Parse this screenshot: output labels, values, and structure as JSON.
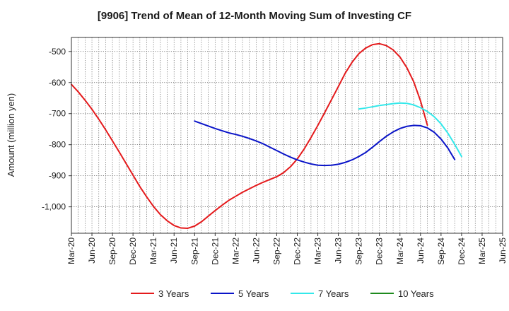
{
  "chart_data": {
    "type": "line",
    "title": "[9906]  Trend of Mean of 12-Month Moving Sum of Investing CF",
    "ylabel": "Amount (million yen)",
    "xlabel": "",
    "ylim": [
      -1085,
      -455
    ],
    "yticks": [
      -500,
      -600,
      -700,
      -800,
      -900,
      -1000
    ],
    "ytick_labels": [
      "-500",
      "-600",
      "-700",
      "-800",
      "-900",
      "-1,000"
    ],
    "xticks": [
      "Mar-20",
      "Jun-20",
      "Sep-20",
      "Dec-20",
      "Mar-21",
      "Jun-21",
      "Sep-21",
      "Dec-21",
      "Mar-22",
      "Jun-22",
      "Sep-22",
      "Dec-22",
      "Mar-23",
      "Jun-23",
      "Sep-23",
      "Dec-23",
      "Mar-24",
      "Jun-24",
      "Sep-24",
      "Dec-24",
      "Mar-25",
      "Jun-25"
    ],
    "grid": true,
    "legend_position": "bottom",
    "series": [
      {
        "name": "3 Years",
        "color": "#e41a1c",
        "start_index": 0,
        "values": [
          -606,
          -630,
          -657,
          -686,
          -718,
          -752,
          -788,
          -824,
          -861,
          -898,
          -935,
          -968,
          -999,
          -1025,
          -1045,
          -1060,
          -1068,
          -1069,
          -1062,
          -1048,
          -1030,
          -1012,
          -995,
          -979,
          -966,
          -953,
          -942,
          -931,
          -921,
          -912,
          -903,
          -890,
          -871,
          -846,
          -814,
          -777,
          -738,
          -697,
          -655,
          -613,
          -570,
          -535,
          -507,
          -489,
          -478,
          -475,
          -481,
          -495,
          -518,
          -552,
          -597,
          -659,
          -737
        ]
      },
      {
        "name": "5 Years",
        "color": "#0a14c8",
        "start_index": 18,
        "values": [
          -724,
          -732,
          -740,
          -748,
          -755,
          -762,
          -767,
          -773,
          -780,
          -788,
          -797,
          -808,
          -819,
          -830,
          -840,
          -849,
          -856,
          -862,
          -866,
          -867,
          -866,
          -863,
          -857,
          -849,
          -838,
          -825,
          -808,
          -790,
          -773,
          -759,
          -748,
          -741,
          -738,
          -739,
          -746,
          -760,
          -782,
          -811,
          -848
        ]
      },
      {
        "name": "7 Years",
        "color": "#33e8ea",
        "start_index": 42,
        "values": [
          -685,
          -682,
          -678,
          -674,
          -671,
          -668,
          -666,
          -667,
          -672,
          -681,
          -693,
          -710,
          -733,
          -763,
          -799,
          -838
        ]
      },
      {
        "name": "10 Years",
        "color": "#1e8a1e",
        "start_index": 0,
        "values": []
      }
    ]
  }
}
